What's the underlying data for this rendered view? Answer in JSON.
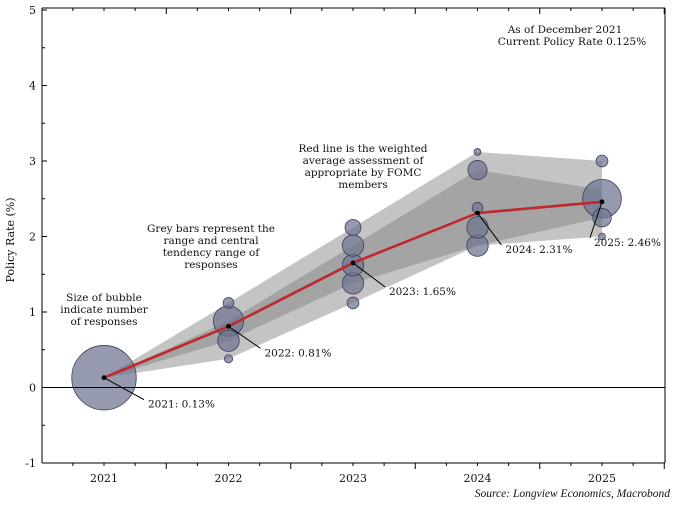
{
  "chart_data": {
    "type": "line",
    "title": "",
    "ylabel": "Policy Rate (%)",
    "xlabel": "",
    "categories": [
      "2021",
      "2022",
      "2023",
      "2024",
      "2025"
    ],
    "ylim": [
      -1,
      5
    ],
    "yticks": [
      "-1",
      "0",
      "1",
      "2",
      "3",
      "4",
      "5"
    ],
    "range_band": {
      "low": [
        0.13,
        0.38,
        1.12,
        1.88,
        2.0
      ],
      "high": [
        0.13,
        1.12,
        2.12,
        3.12,
        3.0
      ]
    },
    "central_tendency_band": {
      "low": [
        0.13,
        0.62,
        1.38,
        1.88,
        2.25
      ],
      "high": [
        0.13,
        0.88,
        1.88,
        2.88,
        2.62
      ]
    },
    "series": [
      {
        "name": "Weighted average",
        "color": "#c0282d",
        "values": [
          0.13,
          0.81,
          1.65,
          2.31,
          2.46
        ]
      }
    ],
    "bubbles": [
      {
        "x": "2021",
        "y": 0.13,
        "count": 18
      },
      {
        "x": "2022",
        "y": 0.38,
        "count": 0.3
      },
      {
        "x": "2022",
        "y": 0.62,
        "count": 2
      },
      {
        "x": "2022",
        "y": 0.88,
        "count": 4
      },
      {
        "x": "2022",
        "y": 1.12,
        "count": 0.5
      },
      {
        "x": "2023",
        "y": 1.12,
        "count": 0.6
      },
      {
        "x": "2023",
        "y": 1.38,
        "count": 2
      },
      {
        "x": "2023",
        "y": 1.62,
        "count": 2
      },
      {
        "x": "2023",
        "y": 1.88,
        "count": 2
      },
      {
        "x": "2023",
        "y": 2.12,
        "count": 1.1
      },
      {
        "x": "2024",
        "y": 1.88,
        "count": 2
      },
      {
        "x": "2024",
        "y": 2.12,
        "count": 2
      },
      {
        "x": "2024",
        "y": 2.38,
        "count": 0.5
      },
      {
        "x": "2024",
        "y": 2.88,
        "count": 1.6
      },
      {
        "x": "2024",
        "y": 3.12,
        "count": 0.2
      },
      {
        "x": "2025",
        "y": 2.0,
        "count": 0.2
      },
      {
        "x": "2025",
        "y": 2.25,
        "count": 1.5
      },
      {
        "x": "2025",
        "y": 2.5,
        "count": 6.5
      },
      {
        "x": "2025",
        "y": 3.0,
        "count": 0.6
      }
    ],
    "data_labels": [
      "2021: 0.13%",
      "2022: 0.81%",
      "2023: 1.65%",
      "2024: 2.31%",
      "2025: 2.46%"
    ],
    "annotations": {
      "as_of_line1": "As of December 2021",
      "as_of_line2": "Current Policy Rate 0.125%",
      "bubble_note": [
        "Size of bubble",
        "indicate number",
        "of responses"
      ],
      "grey_note": [
        "Grey bars represent the",
        "range and central",
        "tendency range of",
        "responses"
      ],
      "red_note": [
        "Red line is the weighted",
        "average assessment of",
        "appropriate by FOMC",
        "members"
      ]
    },
    "source": "Source: Longview Economics, Macrobond",
    "colors": {
      "range_band": "#c4c4c4",
      "central_band": "#a4a4a4",
      "bubble_fill": "#6e7390",
      "bubble_stroke": "#3d4059",
      "line": "#c0282d",
      "zero_line": "#000000",
      "background": "#ffffff"
    },
    "grid": false
  }
}
